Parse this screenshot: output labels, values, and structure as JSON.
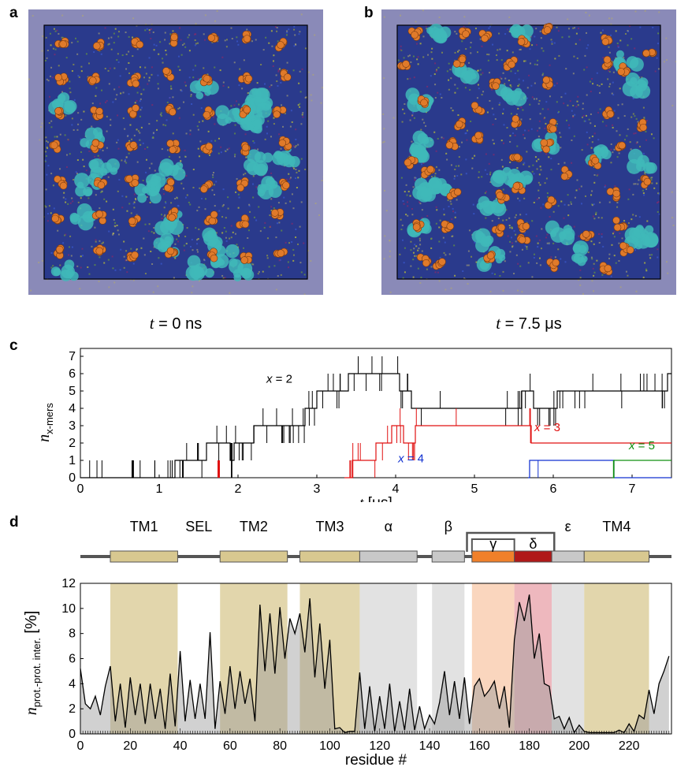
{
  "panels": {
    "a": {
      "letter": "a",
      "caption_var": "t",
      "caption_rest": " = 0 ns"
    },
    "b": {
      "letter": "b",
      "caption_var": "t",
      "caption_rest": " = 7.5 μs"
    },
    "c": {
      "letter": "c"
    },
    "d": {
      "letter": "d"
    }
  },
  "colors": {
    "membrane": "#2a3a8c",
    "protein_orange": "#e07a2a",
    "protein_cyan": "#3fb8b8",
    "border_fill": "#8a8ab8",
    "tm_band": "#d8c890",
    "helix_gray": "#c8c8c8",
    "gamma": "#f0802a",
    "delta": "#b01818",
    "x2": "#000000",
    "x3": "#e01010",
    "x4": "#1030d0",
    "x5": "#109010"
  },
  "chart_data": [
    {
      "type": "line",
      "xlabel_var": "t",
      "xlabel_unit": "[μs]",
      "ylabel_main": "n",
      "ylabel_sub": "x-mers",
      "xlim": [
        0,
        7.5
      ],
      "ylim": [
        0,
        7
      ],
      "xticks": [
        0,
        1,
        2,
        3,
        4,
        5,
        6,
        7
      ],
      "yticks": [
        0,
        1,
        2,
        3,
        4,
        5,
        6,
        7
      ],
      "series": [
        {
          "name": "x = 2",
          "label_var": "x",
          "label_rest": " = 2",
          "color": "#000000",
          "x": [
            0,
            0.65,
            0.68,
            1.0,
            1.2,
            1.35,
            1.6,
            1.9,
            1.95,
            2.2,
            2.5,
            2.85,
            3.0,
            3.4,
            3.7,
            4.05,
            4.2,
            5.55,
            5.6,
            5.75,
            6.05,
            6.4,
            7.1,
            7.45,
            7.5
          ],
          "y": [
            0,
            0,
            0,
            0,
            1,
            1,
            2,
            1,
            2,
            3,
            3,
            4,
            5,
            6,
            6,
            5,
            4,
            4,
            5,
            4,
            5,
            5,
            5,
            6,
            6
          ]
        },
        {
          "name": "x = 3",
          "label_var": "x",
          "label_rest": " = 3",
          "color": "#e01010",
          "x": [
            3.35,
            3.45,
            3.6,
            3.75,
            3.95,
            4.1,
            4.25,
            5.7,
            5.72,
            7.5
          ],
          "y": [
            0,
            1,
            1,
            2,
            3,
            2,
            3,
            3,
            2,
            2
          ]
        },
        {
          "name": "x = 4",
          "label_var": "x",
          "label_rest": " = 4",
          "color": "#1030d0",
          "x": [
            5.68,
            5.7,
            6.75,
            6.77,
            7.5
          ],
          "y": [
            0,
            1,
            1,
            0,
            0
          ]
        },
        {
          "name": "x = 5",
          "label_var": "x",
          "label_rest": " = 5",
          "color": "#109010",
          "x": [
            6.75,
            6.77,
            7.5
          ],
          "y": [
            0,
            1,
            1
          ]
        }
      ]
    },
    {
      "type": "area",
      "xlabel": "residue #",
      "ylabel_main": "n",
      "ylabel_sub": "prot.-prot. inter.",
      "ylabel_unit": "[%]",
      "xlim": [
        0,
        237
      ],
      "ylim": [
        0,
        12
      ],
      "xticks": [
        0,
        20,
        40,
        60,
        80,
        100,
        120,
        140,
        160,
        180,
        200,
        220
      ],
      "yticks": [
        0,
        2,
        4,
        6,
        8,
        10,
        12
      ],
      "regions": [
        {
          "label": "TM1",
          "start": 12,
          "end": 39,
          "kind": "tm"
        },
        {
          "label": "SEL",
          "start": 39,
          "end": 56,
          "kind": "none"
        },
        {
          "label": "TM2",
          "start": 56,
          "end": 83,
          "kind": "tm"
        },
        {
          "label": "TM3",
          "start": 88,
          "end": 112,
          "kind": "tm"
        },
        {
          "label": "α",
          "start": 112,
          "end": 135,
          "kind": "helix"
        },
        {
          "label": "β",
          "start": 141,
          "end": 154,
          "kind": "helix"
        },
        {
          "label": "γ",
          "start": 157,
          "end": 174,
          "kind": "gamma"
        },
        {
          "label": "δ",
          "start": 174,
          "end": 189,
          "kind": "delta"
        },
        {
          "label": "ε",
          "start": 189,
          "end": 202,
          "kind": "helix"
        },
        {
          "label": "TM4",
          "start": 202,
          "end": 228,
          "kind": "tm"
        }
      ],
      "x": [
        0,
        2,
        4,
        6,
        8,
        10,
        12,
        14,
        16,
        18,
        20,
        22,
        24,
        26,
        28,
        30,
        32,
        34,
        36,
        38,
        40,
        42,
        44,
        46,
        48,
        50,
        52,
        54,
        56,
        58,
        60,
        62,
        64,
        66,
        68,
        70,
        72,
        74,
        76,
        78,
        80,
        82,
        84,
        86,
        88,
        90,
        92,
        94,
        96,
        98,
        100,
        102,
        104,
        106,
        108,
        110,
        112,
        114,
        116,
        118,
        120,
        122,
        124,
        126,
        128,
        130,
        132,
        134,
        136,
        138,
        140,
        142,
        144,
        146,
        148,
        150,
        152,
        154,
        156,
        158,
        160,
        162,
        164,
        166,
        168,
        170,
        172,
        174,
        176,
        178,
        180,
        182,
        184,
        186,
        188,
        190,
        192,
        194,
        196,
        198,
        200,
        202,
        204,
        206,
        208,
        210,
        212,
        214,
        216,
        218,
        220,
        222,
        224,
        226,
        228,
        230,
        232,
        234,
        236
      ],
      "values": [
        5.2,
        2.4,
        2.0,
        3.0,
        1.5,
        3.8,
        5.4,
        1.0,
        4.0,
        0.5,
        4.5,
        1.5,
        4.0,
        0.8,
        4.0,
        1.2,
        3.6,
        0.4,
        4.8,
        0.6,
        6.6,
        1.0,
        4.3,
        1.2,
        4.0,
        1.2,
        8.1,
        0.4,
        4.2,
        1.6,
        5.4,
        2.0,
        5.0,
        2.4,
        4.4,
        1.0,
        10.3,
        5.0,
        9.6,
        4.8,
        10.1,
        6.0,
        9.2,
        8.0,
        9.6,
        6.5,
        10.8,
        4.5,
        8.8,
        3.6,
        7.5,
        0.4,
        0.5,
        0.1,
        0.2,
        0.2,
        4.9,
        0.4,
        3.8,
        0.2,
        3.0,
        0.4,
        4.0,
        0.2,
        2.6,
        0.3,
        3.6,
        0.3,
        2.2,
        0.4,
        1.5,
        0.8,
        2.5,
        5.0,
        1.5,
        4.2,
        1.2,
        4.5,
        0.8,
        3.8,
        4.4,
        3.0,
        3.5,
        4.2,
        2.0,
        3.8,
        0.5,
        7.5,
        10.5,
        9.0,
        11.1,
        6.0,
        8.0,
        4.0,
        3.8,
        1.2,
        1.4,
        0.4,
        1.3,
        0.1,
        0.7,
        0.2,
        0.1,
        0.1,
        0.1,
        0.1,
        0.1,
        0.1,
        0.3,
        0.1,
        0.8,
        0.2,
        1.5,
        1.2,
        3.5,
        1.6,
        4.0,
        5.0,
        6.2
      ]
    }
  ]
}
